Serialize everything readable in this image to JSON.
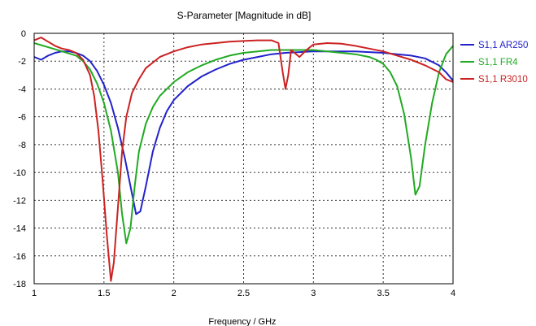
{
  "chart_data": {
    "type": "line",
    "title": "S-Parameter [Magnitude in dB]",
    "xlabel": "Frequency / GHz",
    "ylabel": "",
    "xlim": [
      1,
      4
    ],
    "ylim": [
      -18,
      0
    ],
    "xticks": [
      1,
      1.5,
      2,
      2.5,
      3,
      3.5,
      4
    ],
    "xtick_labels": [
      "1",
      "1.5",
      "2",
      "2.5",
      "3",
      "3.5",
      "4"
    ],
    "yticks": [
      0,
      -2,
      -4,
      -6,
      -8,
      -10,
      -12,
      -14,
      -16,
      -18
    ],
    "ytick_labels": [
      "0",
      "-2",
      "-4",
      "-6",
      "-8",
      "-10",
      "-12",
      "-14",
      "-16",
      "-18"
    ],
    "grid": true,
    "legend_position": "right",
    "series": [
      {
        "name": "S1,1 AR250",
        "color": "#2222cc",
        "points": [
          [
            1,
            -1.7
          ],
          [
            1.05,
            -1.9
          ],
          [
            1.1,
            -1.6
          ],
          [
            1.15,
            -1.4
          ],
          [
            1.2,
            -1.3
          ],
          [
            1.25,
            -1.3
          ],
          [
            1.3,
            -1.4
          ],
          [
            1.35,
            -1.6
          ],
          [
            1.4,
            -2.0
          ],
          [
            1.45,
            -2.7
          ],
          [
            1.5,
            -3.7
          ],
          [
            1.55,
            -5.0
          ],
          [
            1.6,
            -6.8
          ],
          [
            1.65,
            -9.0
          ],
          [
            1.7,
            -11.5
          ],
          [
            1.73,
            -13.0
          ],
          [
            1.76,
            -12.8
          ],
          [
            1.8,
            -11.0
          ],
          [
            1.85,
            -8.5
          ],
          [
            1.9,
            -6.8
          ],
          [
            1.95,
            -5.6
          ],
          [
            2.0,
            -4.8
          ],
          [
            2.1,
            -3.8
          ],
          [
            2.2,
            -3.1
          ],
          [
            2.3,
            -2.6
          ],
          [
            2.4,
            -2.2
          ],
          [
            2.5,
            -1.9
          ],
          [
            2.6,
            -1.7
          ],
          [
            2.7,
            -1.5
          ],
          [
            2.8,
            -1.4
          ],
          [
            2.9,
            -1.35
          ],
          [
            3.0,
            -1.3
          ],
          [
            3.1,
            -1.3
          ],
          [
            3.2,
            -1.3
          ],
          [
            3.3,
            -1.3
          ],
          [
            3.4,
            -1.35
          ],
          [
            3.5,
            -1.4
          ],
          [
            3.6,
            -1.5
          ],
          [
            3.7,
            -1.6
          ],
          [
            3.8,
            -1.8
          ],
          [
            3.9,
            -2.3
          ],
          [
            3.95,
            -2.8
          ],
          [
            4.0,
            -3.4
          ]
        ]
      },
      {
        "name": "S1,1 FR4",
        "color": "#22aa22",
        "points": [
          [
            1,
            -0.7
          ],
          [
            1.1,
            -1.0
          ],
          [
            1.2,
            -1.3
          ],
          [
            1.3,
            -1.6
          ],
          [
            1.35,
            -2.0
          ],
          [
            1.4,
            -2.6
          ],
          [
            1.45,
            -3.6
          ],
          [
            1.5,
            -5.0
          ],
          [
            1.55,
            -7.0
          ],
          [
            1.6,
            -10.0
          ],
          [
            1.63,
            -13.0
          ],
          [
            1.66,
            -15.1
          ],
          [
            1.69,
            -14.0
          ],
          [
            1.72,
            -11.0
          ],
          [
            1.75,
            -8.5
          ],
          [
            1.8,
            -6.5
          ],
          [
            1.85,
            -5.3
          ],
          [
            1.9,
            -4.5
          ],
          [
            2.0,
            -3.5
          ],
          [
            2.1,
            -2.8
          ],
          [
            2.2,
            -2.3
          ],
          [
            2.3,
            -1.9
          ],
          [
            2.4,
            -1.6
          ],
          [
            2.5,
            -1.4
          ],
          [
            2.6,
            -1.3
          ],
          [
            2.7,
            -1.2
          ],
          [
            2.8,
            -1.2
          ],
          [
            2.9,
            -1.2
          ],
          [
            3.0,
            -1.2
          ],
          [
            3.1,
            -1.3
          ],
          [
            3.2,
            -1.4
          ],
          [
            3.3,
            -1.5
          ],
          [
            3.4,
            -1.7
          ],
          [
            3.45,
            -1.9
          ],
          [
            3.5,
            -2.2
          ],
          [
            3.55,
            -2.8
          ],
          [
            3.6,
            -3.8
          ],
          [
            3.65,
            -5.8
          ],
          [
            3.7,
            -9.0
          ],
          [
            3.73,
            -11.6
          ],
          [
            3.76,
            -11.0
          ],
          [
            3.8,
            -8.0
          ],
          [
            3.85,
            -5.0
          ],
          [
            3.9,
            -2.8
          ],
          [
            3.95,
            -1.5
          ],
          [
            4.0,
            -0.9
          ]
        ]
      },
      {
        "name": "S1,1 R3010",
        "color": "#cc2222",
        "points": [
          [
            1,
            -0.5
          ],
          [
            1.05,
            -0.3
          ],
          [
            1.1,
            -0.6
          ],
          [
            1.15,
            -0.9
          ],
          [
            1.2,
            -1.1
          ],
          [
            1.25,
            -1.2
          ],
          [
            1.3,
            -1.4
          ],
          [
            1.35,
            -1.9
          ],
          [
            1.4,
            -3.0
          ],
          [
            1.43,
            -4.5
          ],
          [
            1.46,
            -7.0
          ],
          [
            1.49,
            -10.5
          ],
          [
            1.52,
            -14.5
          ],
          [
            1.55,
            -17.8
          ],
          [
            1.57,
            -16.5
          ],
          [
            1.6,
            -12.5
          ],
          [
            1.63,
            -8.5
          ],
          [
            1.66,
            -6.0
          ],
          [
            1.7,
            -4.3
          ],
          [
            1.75,
            -3.3
          ],
          [
            1.8,
            -2.5
          ],
          [
            1.9,
            -1.7
          ],
          [
            2.0,
            -1.3
          ],
          [
            2.1,
            -1.0
          ],
          [
            2.2,
            -0.8
          ],
          [
            2.3,
            -0.7
          ],
          [
            2.4,
            -0.6
          ],
          [
            2.5,
            -0.55
          ],
          [
            2.6,
            -0.5
          ],
          [
            2.7,
            -0.5
          ],
          [
            2.75,
            -0.7
          ],
          [
            2.78,
            -2.8
          ],
          [
            2.8,
            -4.0
          ],
          [
            2.82,
            -3.0
          ],
          [
            2.84,
            -1.2
          ],
          [
            2.9,
            -1.7
          ],
          [
            2.95,
            -1.2
          ],
          [
            3.0,
            -0.8
          ],
          [
            3.1,
            -0.7
          ],
          [
            3.2,
            -0.75
          ],
          [
            3.3,
            -0.9
          ],
          [
            3.4,
            -1.1
          ],
          [
            3.5,
            -1.3
          ],
          [
            3.6,
            -1.6
          ],
          [
            3.7,
            -1.9
          ],
          [
            3.8,
            -2.3
          ],
          [
            3.9,
            -2.8
          ],
          [
            3.95,
            -3.3
          ],
          [
            4.0,
            -3.5
          ]
        ]
      }
    ]
  }
}
